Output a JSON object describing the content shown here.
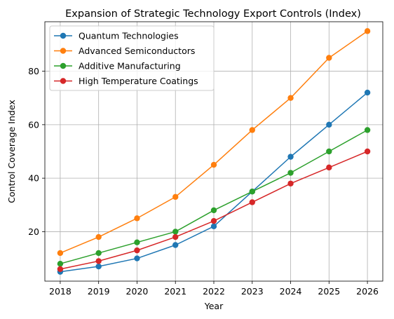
{
  "chart_data": {
    "type": "line",
    "title": "Expansion of Strategic Technology Export Controls (Index)",
    "xlabel": "Year",
    "ylabel": "Control Coverage Index",
    "x": [
      "2018",
      "2019",
      "2020",
      "2021",
      "2022",
      "2023",
      "2024",
      "2025",
      "2026"
    ],
    "xlim": [
      2017.6,
      2026.4
    ],
    "ylim": [
      1.5,
      98.5
    ],
    "yticks": [
      "20",
      "40",
      "60",
      "80"
    ],
    "grid": true,
    "legend_position": "top-left",
    "series": [
      {
        "name": "Quantum Technologies",
        "color": "#1f77b4",
        "values": [
          5,
          7,
          10,
          15,
          22,
          35,
          48,
          60,
          72
        ]
      },
      {
        "name": "Advanced Semiconductors",
        "color": "#ff7f0e",
        "values": [
          12,
          18,
          25,
          33,
          45,
          58,
          70,
          85,
          95
        ]
      },
      {
        "name": "Additive Manufacturing",
        "color": "#2ca02c",
        "values": [
          8,
          12,
          16,
          20,
          28,
          35,
          42,
          50,
          58
        ]
      },
      {
        "name": "High Temperature Coatings",
        "color": "#d62728",
        "values": [
          6,
          9,
          13,
          18,
          24,
          31,
          38,
          44,
          50
        ]
      }
    ]
  }
}
